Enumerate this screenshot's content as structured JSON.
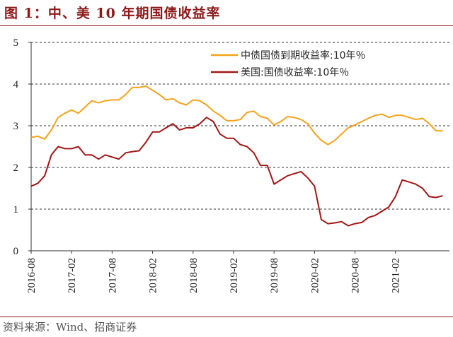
{
  "figure": {
    "title": "图 1：中、美 10 年期国债收益率",
    "source": "资料来源：Wind、招商证券"
  },
  "chart_data": {
    "type": "line",
    "title": "",
    "xlabel": "",
    "ylabel": "",
    "ylim": [
      0,
      5
    ],
    "yticks": [
      "0",
      "1",
      "2",
      "3",
      "4",
      "5"
    ],
    "xticks": [
      "2016-08",
      "2017-02",
      "2017-08",
      "2018-02",
      "2018-08",
      "2019-02",
      "2019-08",
      "2020-02",
      "2020-08",
      "2021-02"
    ],
    "grid": "horizontal dashed",
    "legend_position": "top-right",
    "x": [
      "2016-08",
      "2016-09",
      "2016-10",
      "2016-11",
      "2016-12",
      "2017-01",
      "2017-02",
      "2017-03",
      "2017-04",
      "2017-05",
      "2017-06",
      "2017-07",
      "2017-08",
      "2017-09",
      "2017-10",
      "2017-11",
      "2017-12",
      "2018-01",
      "2018-02",
      "2018-03",
      "2018-04",
      "2018-05",
      "2018-06",
      "2018-07",
      "2018-08",
      "2018-09",
      "2018-10",
      "2018-11",
      "2018-12",
      "2019-01",
      "2019-02",
      "2019-03",
      "2019-04",
      "2019-05",
      "2019-06",
      "2019-07",
      "2019-08",
      "2019-09",
      "2019-10",
      "2019-11",
      "2019-12",
      "2020-01",
      "2020-02",
      "2020-03",
      "2020-04",
      "2020-05",
      "2020-06",
      "2020-07",
      "2020-08",
      "2020-09",
      "2020-10",
      "2020-11",
      "2020-12",
      "2021-01",
      "2021-02",
      "2021-03",
      "2021-04",
      "2021-05",
      "2021-06",
      "2021-07",
      "2021-08",
      "2021-09"
    ],
    "series": [
      {
        "name": "中债国债到期收益率:10年％",
        "color": "#f5a21b",
        "values": [
          2.72,
          2.75,
          2.68,
          2.9,
          3.2,
          3.3,
          3.38,
          3.3,
          3.45,
          3.6,
          3.55,
          3.6,
          3.62,
          3.62,
          3.75,
          3.92,
          3.92,
          3.95,
          3.85,
          3.75,
          3.62,
          3.65,
          3.55,
          3.5,
          3.62,
          3.6,
          3.5,
          3.35,
          3.25,
          3.12,
          3.12,
          3.15,
          3.32,
          3.35,
          3.22,
          3.18,
          3.02,
          3.1,
          3.22,
          3.2,
          3.15,
          3.05,
          2.82,
          2.65,
          2.55,
          2.65,
          2.8,
          2.95,
          3.02,
          3.1,
          3.18,
          3.25,
          3.28,
          3.2,
          3.25,
          3.25,
          3.2,
          3.15,
          3.18,
          3.05,
          2.88,
          2.88
        ]
      },
      {
        "name": "美国:国债收益率:10年％",
        "color": "#a31616",
        "values": [
          1.55,
          1.62,
          1.8,
          2.3,
          2.5,
          2.45,
          2.45,
          2.5,
          2.3,
          2.3,
          2.2,
          2.3,
          2.25,
          2.2,
          2.35,
          2.38,
          2.4,
          2.6,
          2.85,
          2.85,
          2.95,
          3.05,
          2.9,
          2.95,
          2.95,
          3.05,
          3.2,
          3.1,
          2.8,
          2.7,
          2.7,
          2.55,
          2.5,
          2.35,
          2.05,
          2.05,
          1.6,
          1.7,
          1.8,
          1.85,
          1.9,
          1.75,
          1.55,
          0.75,
          0.65,
          0.67,
          0.7,
          0.6,
          0.65,
          0.68,
          0.8,
          0.85,
          0.95,
          1.05,
          1.3,
          1.7,
          1.65,
          1.6,
          1.5,
          1.3,
          1.28,
          1.32
        ]
      }
    ]
  }
}
